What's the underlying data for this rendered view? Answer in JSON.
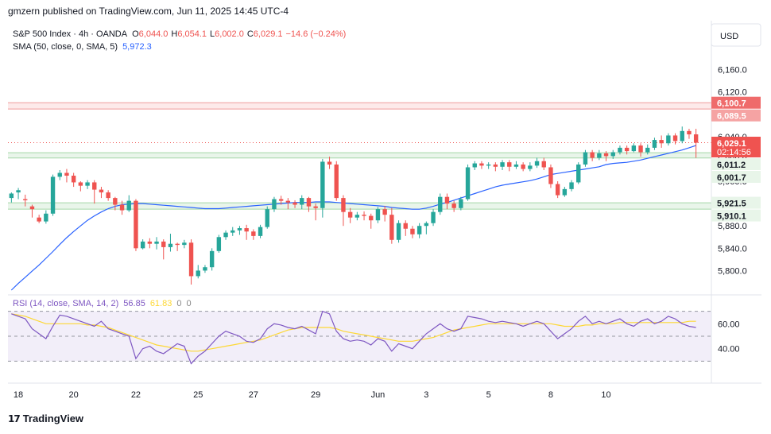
{
  "caption": "gmzern published on TradingView.com, Jun 11, 2025 14:45 UTC-4",
  "footer": {
    "brand": "TradingView"
  },
  "colors": {
    "up": "#26a69a",
    "down": "#ef5350",
    "sma": "#2962ff",
    "rsi": "#7e57c2",
    "rsi_ma": "#fdd835",
    "rsi_band": "#ede7f6",
    "resistance": "#ef9a9a",
    "support": "#a5d6a7"
  },
  "chart_data": [
    {
      "type": "candlestick",
      "title": "S&P 500 Index · 4h · OANDA",
      "ohlc_header": {
        "o_label": "O",
        "o": "6,044.0",
        "h_label": "H",
        "h": "6,054.1",
        "l_label": "L",
        "l": "6,002.0",
        "c_label": "C",
        "c": "6,029.1",
        "change": "−14.6 (−0.24%)"
      },
      "indicator_label": "SMA (50, close, 0, SMA, 5)",
      "indicator_value": "5,972.3",
      "currency": "USD",
      "ylim": [
        5765,
        6185
      ],
      "y_ticks": [
        "5,800.0",
        "5,840.0",
        "5,880.0",
        "5,920.0",
        "5,960.0",
        "6,000.0",
        "6,040.0",
        "6,080.0",
        "6,120.0",
        "6,160.0"
      ],
      "y_tick_values": [
        5800,
        5840,
        5880,
        5920,
        5960,
        6000,
        6040,
        6080,
        6120,
        6160
      ],
      "x_ticks": [
        "18",
        "20",
        "22",
        "25",
        "27",
        "29",
        "Jun",
        "3",
        "5",
        "8",
        "10"
      ],
      "x_tick_index": [
        1,
        9,
        18,
        27,
        35,
        44,
        53,
        60,
        69,
        78,
        86
      ],
      "price_tags": [
        {
          "label": "6,100.7",
          "value": 6100.7,
          "kind": "resistance"
        },
        {
          "label": "6,089.5",
          "value": 6089.5,
          "kind": "resistance"
        },
        {
          "label": "6,029.1",
          "sub": "02:14:56",
          "value": 6029.1,
          "kind": "last"
        },
        {
          "label": "6,011.2",
          "value": 6011.2,
          "kind": "support"
        },
        {
          "label": "6,001.7",
          "value": 6001.7,
          "kind": "support"
        },
        {
          "label": "5,921.5",
          "value": 5921.5,
          "kind": "support"
        },
        {
          "label": "5,910.1",
          "value": 5910.1,
          "kind": "support"
        }
      ],
      "zones": [
        {
          "from": 6089.5,
          "to": 6100.7,
          "kind": "resistance"
        },
        {
          "from": 6001.7,
          "to": 6011.2,
          "kind": "support"
        },
        {
          "from": 5910.1,
          "to": 5921.5,
          "kind": "support"
        }
      ],
      "candles": [
        [
          5930,
          5938,
          5922,
          5940
        ],
        [
          5940,
          5944,
          5928,
          5948
        ],
        [
          5928,
          5926,
          5915,
          5936
        ],
        [
          5915,
          5910,
          5895,
          5918
        ],
        [
          5895,
          5888,
          5885,
          5900
        ],
        [
          5888,
          5902,
          5884,
          5908
        ],
        [
          5902,
          5968,
          5898,
          5972
        ],
        [
          5968,
          5975,
          5962,
          5980
        ],
        [
          5975,
          5970,
          5958,
          5982
        ],
        [
          5970,
          5958,
          5950,
          5975
        ],
        [
          5958,
          5952,
          5942,
          5960
        ],
        [
          5952,
          5958,
          5946,
          5962
        ],
        [
          5958,
          5945,
          5920,
          5962
        ],
        [
          5945,
          5940,
          5930,
          5950
        ],
        [
          5940,
          5930,
          5925,
          5944
        ],
        [
          5930,
          5918,
          5908,
          5932
        ],
        [
          5918,
          5908,
          5900,
          5925
        ],
        [
          5908,
          5925,
          5905,
          5935
        ],
        [
          5925,
          5840,
          5835,
          5928
        ],
        [
          5840,
          5852,
          5838,
          5856
        ],
        [
          5852,
          5848,
          5840,
          5858
        ],
        [
          5848,
          5852,
          5838,
          5860
        ],
        [
          5852,
          5842,
          5820,
          5856
        ],
        [
          5842,
          5848,
          5834,
          5866
        ],
        [
          5848,
          5846,
          5835,
          5850
        ],
        [
          5846,
          5850,
          5840,
          5855
        ],
        [
          5850,
          5790,
          5775,
          5856
        ],
        [
          5790,
          5800,
          5786,
          5810
        ],
        [
          5800,
          5806,
          5796,
          5810
        ],
        [
          5806,
          5835,
          5800,
          5840
        ],
        [
          5835,
          5860,
          5832,
          5864
        ],
        [
          5860,
          5868,
          5855,
          5872
        ],
        [
          5868,
          5872,
          5862,
          5878
        ],
        [
          5872,
          5876,
          5864,
          5880
        ],
        [
          5876,
          5870,
          5855,
          5882
        ],
        [
          5870,
          5862,
          5855,
          5874
        ],
        [
          5862,
          5878,
          5858,
          5882
        ],
        [
          5878,
          5910,
          5875,
          5915
        ],
        [
          5910,
          5928,
          5905,
          5932
        ],
        [
          5928,
          5925,
          5918,
          5934
        ],
        [
          5925,
          5922,
          5910,
          5930
        ],
        [
          5922,
          5918,
          5912,
          5926
        ],
        [
          5918,
          5930,
          5910,
          5935
        ],
        [
          5930,
          5915,
          5905,
          5932
        ],
        [
          5915,
          5912,
          5890,
          5920
        ],
        [
          5912,
          5995,
          5895,
          6000
        ],
        [
          5995,
          5990,
          5982,
          6004
        ],
        [
          5990,
          5930,
          5925,
          5996
        ],
        [
          5930,
          5905,
          5880,
          5935
        ],
        [
          5905,
          5895,
          5885,
          5912
        ],
        [
          5895,
          5900,
          5890,
          5905
        ],
        [
          5900,
          5898,
          5890,
          5906
        ],
        [
          5898,
          5890,
          5875,
          5902
        ],
        [
          5890,
          5910,
          5885,
          5914
        ],
        [
          5910,
          5900,
          5888,
          5916
        ],
        [
          5900,
          5855,
          5848,
          5912
        ],
        [
          5855,
          5885,
          5850,
          5890
        ],
        [
          5885,
          5875,
          5862,
          5890
        ],
        [
          5875,
          5865,
          5858,
          5880
        ],
        [
          5865,
          5880,
          5858,
          5885
        ],
        [
          5880,
          5885,
          5865,
          5888
        ],
        [
          5885,
          5905,
          5880,
          5910
        ],
        [
          5905,
          5932,
          5900,
          5938
        ],
        [
          5932,
          5920,
          5910,
          5938
        ],
        [
          5920,
          5912,
          5905,
          5925
        ],
        [
          5912,
          5928,
          5908,
          5932
        ],
        [
          5928,
          5985,
          5925,
          5990
        ],
        [
          5985,
          5992,
          5980,
          5996
        ],
        [
          5992,
          5988,
          5982,
          5996
        ],
        [
          5988,
          5990,
          5982,
          5994
        ],
        [
          5990,
          5986,
          5978,
          5994
        ],
        [
          5986,
          5994,
          5980,
          5998
        ],
        [
          5994,
          5986,
          5978,
          5998
        ],
        [
          5986,
          5990,
          5982,
          5996
        ],
        [
          5990,
          5982,
          5978,
          5994
        ],
        [
          5982,
          5988,
          5978,
          5994
        ],
        [
          5988,
          5996,
          5984,
          6002
        ],
        [
          5996,
          5985,
          5980,
          6002
        ],
        [
          5985,
          5955,
          5948,
          5990
        ],
        [
          5955,
          5935,
          5930,
          5960
        ],
        [
          5935,
          5946,
          5932,
          5950
        ],
        [
          5946,
          5958,
          5942,
          5962
        ],
        [
          5958,
          5990,
          5955,
          5994
        ],
        [
          5990,
          6012,
          5986,
          6016
        ],
        [
          6012,
          6002,
          5996,
          6016
        ],
        [
          6002,
          6010,
          5998,
          6016
        ],
        [
          6010,
          6005,
          5996,
          6014
        ],
        [
          6005,
          6012,
          6000,
          6016
        ],
        [
          6012,
          6020,
          6008,
          6024
        ],
        [
          6020,
          6014,
          6008,
          6024
        ]
      ],
      "candles_2": [
        [
          6014,
          6024,
          6012,
          6028
        ],
        [
          6024,
          6012,
          6004,
          6028
        ],
        [
          6012,
          6020,
          6008,
          6026
        ],
        [
          6020,
          6034,
          6016,
          6038
        ],
        [
          6034,
          6028,
          6020,
          6042
        ],
        [
          6028,
          6042,
          6024,
          6046
        ],
        [
          6042,
          6032,
          6026,
          6046
        ],
        [
          6032,
          6050,
          6028,
          6058
        ],
        [
          6050,
          6044,
          6036,
          6054
        ],
        [
          6044,
          6029,
          6002,
          6054
        ]
      ],
      "sma": [
        5765,
        5777,
        5788,
        5799,
        5810,
        5822,
        5834,
        5847,
        5859,
        5870,
        5880,
        5890,
        5898,
        5905,
        5911,
        5915,
        5918,
        5919,
        5920,
        5920,
        5919,
        5918,
        5917,
        5916,
        5915,
        5914,
        5913,
        5912,
        5911,
        5911,
        5911,
        5912,
        5913,
        5914,
        5915,
        5916,
        5917,
        5918,
        5919,
        5920,
        5921,
        5922,
        5922,
        5922,
        5923,
        5923,
        5923,
        5922,
        5921,
        5920,
        5919,
        5918,
        5917,
        5916,
        5915,
        5913,
        5912,
        5911,
        5910,
        5910,
        5912,
        5915,
        5919,
        5922,
        5926,
        5930,
        5934,
        5938,
        5942,
        5946,
        5950,
        5953,
        5955,
        5957,
        5959,
        5961,
        5964,
        5968,
        5972,
        5974,
        5976,
        5978,
        5980,
        5982,
        5984,
        5986,
        5990,
        5992,
        5993,
        5994,
        5996,
        5998,
        6001,
        6004,
        6007,
        6010,
        6013,
        6016,
        6020,
        6024
      ]
    },
    {
      "type": "line",
      "title": "RSI (14, close, SMA, 14, 2)",
      "values_text": [
        "56.85",
        "61.83",
        "0",
        "0"
      ],
      "ylim": [
        20,
        80
      ],
      "bands": [
        30,
        50,
        70
      ],
      "y_ticks": [
        "40.00",
        "60.00"
      ],
      "y_tick_values": [
        40,
        60
      ],
      "rsi": [
        68,
        66,
        64,
        56,
        52,
        48,
        58,
        67,
        66,
        64,
        62,
        60,
        58,
        62,
        56,
        54,
        52,
        50,
        32,
        40,
        42,
        38,
        36,
        40,
        44,
        42,
        28,
        34,
        38,
        44,
        50,
        54,
        52,
        50,
        46,
        45,
        48,
        56,
        60,
        59,
        57,
        56,
        58,
        55,
        52,
        70,
        68,
        54,
        48,
        46,
        47,
        46,
        43,
        48,
        46,
        38,
        44,
        42,
        40,
        46,
        52,
        56,
        60,
        56,
        54,
        56,
        66,
        65,
        64,
        62,
        61,
        62,
        61,
        60,
        58,
        60,
        62,
        60,
        54,
        48,
        52,
        56,
        62,
        66,
        60,
        62,
        60,
        62,
        64,
        60,
        58,
        62,
        64,
        60,
        62,
        66,
        64,
        60,
        58,
        57
      ],
      "rsi_ma": [
        68,
        67,
        66,
        64,
        62,
        60,
        60,
        60,
        60,
        60,
        60,
        59,
        59,
        58,
        57,
        55,
        53,
        51,
        49,
        47,
        45,
        43,
        42,
        41,
        40,
        39,
        38,
        38,
        39,
        40,
        41,
        42,
        43,
        44,
        45,
        46,
        47,
        49,
        51,
        53,
        55,
        56,
        57,
        57,
        57,
        57,
        57,
        56,
        54,
        53,
        52,
        51,
        50,
        49,
        48,
        47,
        46,
        46,
        46,
        47,
        48,
        49,
        51,
        53,
        55,
        56,
        57,
        58,
        59,
        60,
        60,
        60,
        60,
        60,
        60,
        60,
        60,
        60,
        60,
        59,
        58,
        58,
        58,
        59,
        59,
        60,
        60,
        60,
        61,
        61,
        61,
        61,
        61,
        61,
        61,
        61,
        61,
        61,
        62,
        62
      ]
    }
  ]
}
